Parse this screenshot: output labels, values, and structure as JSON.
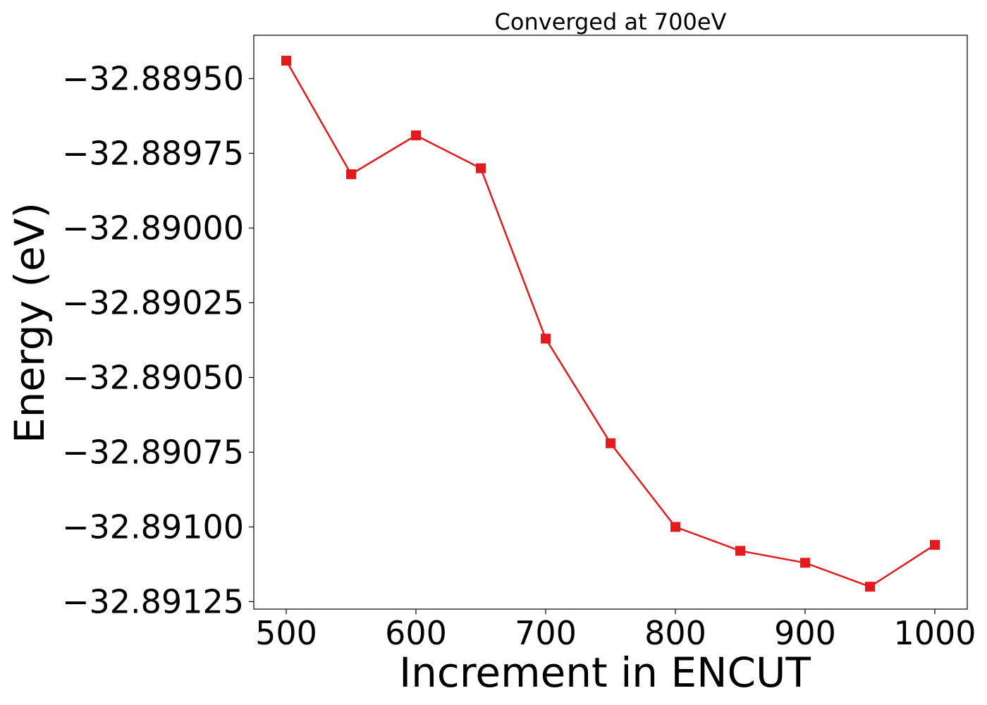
{
  "chart_data": {
    "type": "line",
    "title": "Converged at 700eV",
    "xlabel": "Increment in ENCUT",
    "ylabel": "Energy (eV)",
    "x": [
      500,
      550,
      600,
      650,
      700,
      750,
      800,
      850,
      900,
      950,
      1000
    ],
    "series": [
      {
        "values": [
          -32.88944,
          -32.88982,
          -32.88969,
          -32.8898,
          -32.89037,
          -32.89072,
          -32.891,
          -32.89108,
          -32.89112,
          -32.8912,
          -32.89106
        ],
        "color": "#e41a1c",
        "marker": "square"
      }
    ],
    "xlim": [
      475,
      1025
    ],
    "ylim": [
      -32.891275,
      -32.889355
    ],
    "xticks": [
      500,
      600,
      700,
      800,
      900,
      1000
    ],
    "xtick_labels": [
      "500",
      "600",
      "700",
      "800",
      "900",
      "1000"
    ],
    "yticks": [
      -32.8895,
      -32.88975,
      -32.89,
      -32.89025,
      -32.8905,
      -32.89075,
      -32.891,
      -32.89125
    ],
    "ytick_labels": [
      "−32.88950",
      "−32.88975",
      "−32.89000",
      "−32.89025",
      "−32.89050",
      "−32.89075",
      "−32.89100",
      "−32.89125"
    ],
    "grid": false,
    "legend": "none"
  }
}
